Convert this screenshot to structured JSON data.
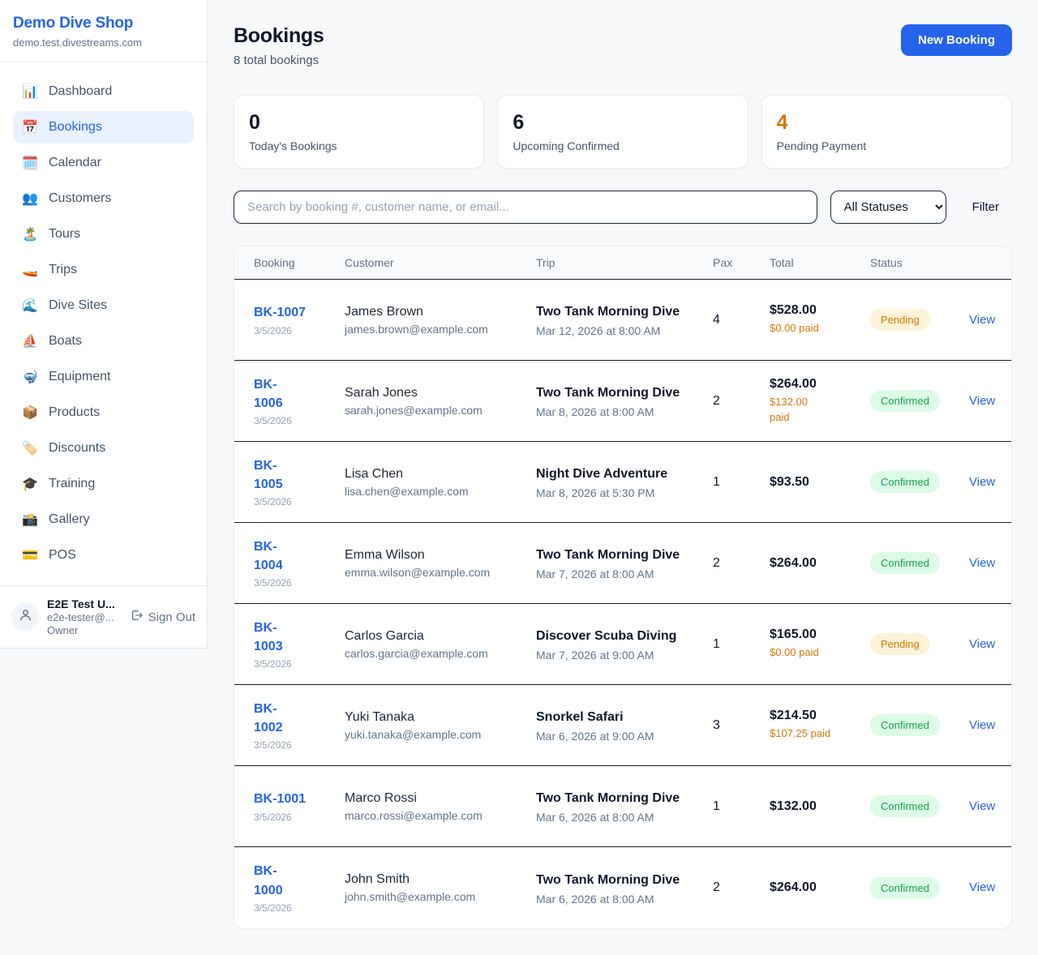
{
  "sidebar": {
    "shop_name": "Demo Dive Shop",
    "shop_domain": "demo.test.divestreams.com",
    "items": [
      {
        "icon": "📊",
        "label": "Dashboard",
        "active": false
      },
      {
        "icon": "📅",
        "label": "Bookings",
        "active": true
      },
      {
        "icon": "🗓️",
        "label": "Calendar",
        "active": false
      },
      {
        "icon": "👥",
        "label": "Customers",
        "active": false
      },
      {
        "icon": "🏝️",
        "label": "Tours",
        "active": false
      },
      {
        "icon": "🚤",
        "label": "Trips",
        "active": false
      },
      {
        "icon": "🌊",
        "label": "Dive Sites",
        "active": false
      },
      {
        "icon": "⛵",
        "label": "Boats",
        "active": false
      },
      {
        "icon": "🤿",
        "label": "Equipment",
        "active": false
      },
      {
        "icon": "📦",
        "label": "Products",
        "active": false
      },
      {
        "icon": "🏷️",
        "label": "Discounts",
        "active": false
      },
      {
        "icon": "🎓",
        "label": "Training",
        "active": false
      },
      {
        "icon": "📸",
        "label": "Gallery",
        "active": false
      },
      {
        "icon": "💳",
        "label": "POS",
        "active": false
      }
    ],
    "user": {
      "name": "E2E Test U...",
      "email": "e2e-tester@...",
      "role": "Owner",
      "sign_out_label": "Sign Out"
    }
  },
  "header": {
    "title": "Bookings",
    "subtitle": "8 total bookings",
    "new_booking_label": "New Booking"
  },
  "stats": [
    {
      "value": "0",
      "label": "Today's Bookings",
      "highlight": false
    },
    {
      "value": "6",
      "label": "Upcoming Confirmed",
      "highlight": false
    },
    {
      "value": "4",
      "label": "Pending Payment",
      "highlight": true
    }
  ],
  "filters": {
    "search_placeholder": "Search by booking #, customer name, or email...",
    "status_selected": "All Statuses",
    "filter_label": "Filter"
  },
  "table": {
    "columns": [
      "Booking",
      "Customer",
      "Trip",
      "Pax",
      "Total",
      "Status"
    ],
    "view_label": "View",
    "rows": [
      {
        "booking_id": "BK-1007",
        "date": "3/5/2026",
        "customer": "James Brown",
        "email": "james.brown@example.com",
        "trip": "Two Tank Morning Dive",
        "trip_datetime": "Mar 12, 2026 at 8:00 AM",
        "pax": "4",
        "total": "$528.00",
        "paid": "$0.00 paid",
        "status": "Pending"
      },
      {
        "booking_id": "BK-\n1006",
        "date": "3/5/2026",
        "customer": "Sarah Jones",
        "email": "sarah.jones@example.com",
        "trip": "Two Tank Morning Dive",
        "trip_datetime": "Mar 8, 2026 at 8:00 AM",
        "pax": "2",
        "total": "$264.00",
        "paid": "$132.00\npaid",
        "status": "Confirmed"
      },
      {
        "booking_id": "BK-\n1005",
        "date": "3/5/2026",
        "customer": "Lisa Chen",
        "email": "lisa.chen@example.com",
        "trip": "Night Dive Adventure",
        "trip_datetime": "Mar 8, 2026 at 5:30 PM",
        "pax": "1",
        "total": "$93.50",
        "paid": null,
        "status": "Confirmed"
      },
      {
        "booking_id": "BK-\n1004",
        "date": "3/5/2026",
        "customer": "Emma Wilson",
        "email": "emma.wilson@example.com",
        "trip": "Two Tank Morning Dive",
        "trip_datetime": "Mar 7, 2026 at 8:00 AM",
        "pax": "2",
        "total": "$264.00",
        "paid": null,
        "status": "Confirmed"
      },
      {
        "booking_id": "BK-\n1003",
        "date": "3/5/2026",
        "customer": "Carlos Garcia",
        "email": "carlos.garcia@example.com",
        "trip": "Discover Scuba Diving",
        "trip_datetime": "Mar 7, 2026 at 9:00 AM",
        "pax": "1",
        "total": "$165.00",
        "paid": "$0.00 paid",
        "status": "Pending"
      },
      {
        "booking_id": "BK-\n1002",
        "date": "3/5/2026",
        "customer": "Yuki Tanaka",
        "email": "yuki.tanaka@example.com",
        "trip": "Snorkel Safari",
        "trip_datetime": "Mar 6, 2026 at 9:00 AM",
        "pax": "3",
        "total": "$214.50",
        "paid": "$107.25 paid",
        "status": "Confirmed"
      },
      {
        "booking_id": "BK-1001",
        "date": "3/5/2026",
        "customer": "Marco Rossi",
        "email": "marco.rossi@example.com",
        "trip": "Two Tank Morning Dive",
        "trip_datetime": "Mar 6, 2026 at 8:00 AM",
        "pax": "1",
        "total": "$132.00",
        "paid": null,
        "status": "Confirmed"
      },
      {
        "booking_id": "BK-\n1000",
        "date": "3/5/2026",
        "customer": "John Smith",
        "email": "john.smith@example.com",
        "trip": "Two Tank Morning Dive",
        "trip_datetime": "Mar 6, 2026 at 8:00 AM",
        "pax": "2",
        "total": "$264.00",
        "paid": null,
        "status": "Confirmed"
      }
    ]
  },
  "colors": {
    "accent_blue": "#2563eb",
    "pending_text": "#d97706",
    "pending_bg": "#fdf3d7",
    "confirmed_text": "#16a34a",
    "confirmed_bg": "#dcfce7",
    "paid_orange": "#d97706"
  }
}
